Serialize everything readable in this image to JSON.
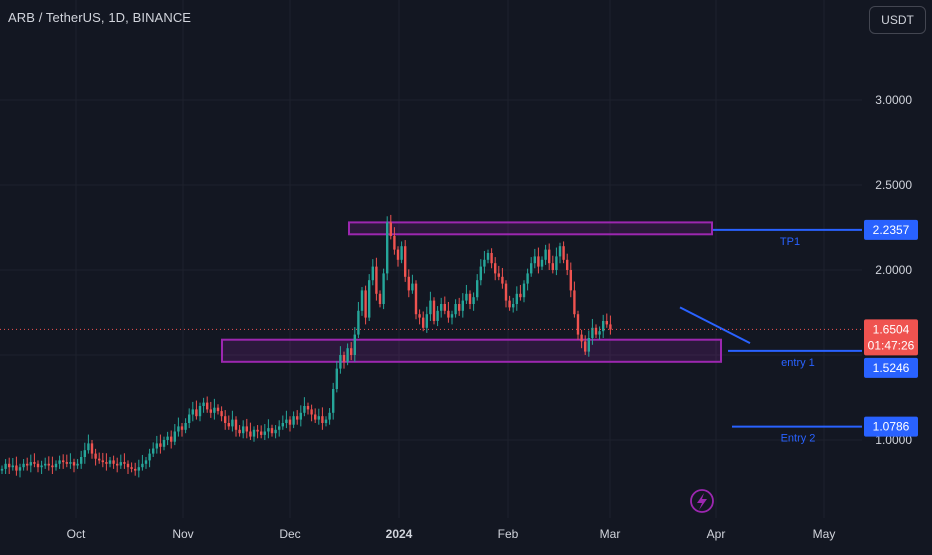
{
  "header": {
    "symbol_title": "ARB / TetherUS, 1D, BINANCE",
    "currency_label": "USDT"
  },
  "colors": {
    "background": "#131722",
    "up": "#26a69a",
    "down": "#ef5350",
    "zone": "#9c27b0",
    "line": "#2962ff",
    "text": "#d1d4dc"
  },
  "chart_data": {
    "type": "candlestick",
    "x_labels": [
      "Oct",
      "Nov",
      "Dec",
      "2024",
      "Feb",
      "Mar",
      "Apr",
      "May"
    ],
    "y_ticks": [
      "3.0000",
      "2.5000",
      "2.0000",
      "1.0000"
    ],
    "ylim": [
      0.8,
      3.4
    ],
    "grid": true,
    "series": [
      {
        "ohlc_summary": "daily ARB/USDT candles from mid-September 2023 to late March 2024",
        "start_date": "2023-09-15",
        "closes": [
          0.83,
          0.86,
          0.84,
          0.85,
          0.82,
          0.84,
          0.86,
          0.85,
          0.87,
          0.86,
          0.84,
          0.85,
          0.86,
          0.85,
          0.84,
          0.86,
          0.88,
          0.87,
          0.86,
          0.87,
          0.85,
          0.86,
          0.9,
          0.94,
          0.98,
          0.92,
          0.89,
          0.88,
          0.87,
          0.86,
          0.88,
          0.86,
          0.85,
          0.87,
          0.86,
          0.84,
          0.83,
          0.82,
          0.84,
          0.86,
          0.88,
          0.92,
          0.95,
          0.98,
          0.96,
          1.0,
          1.02,
          0.99,
          1.05,
          1.08,
          1.06,
          1.1,
          1.15,
          1.18,
          1.14,
          1.2,
          1.22,
          1.18,
          1.16,
          1.19,
          1.17,
          1.14,
          1.1,
          1.08,
          1.12,
          1.06,
          1.04,
          1.08,
          1.05,
          1.02,
          1.06,
          1.05,
          1.03,
          1.05,
          1.07,
          1.04,
          1.06,
          1.08,
          1.1,
          1.12,
          1.09,
          1.14,
          1.12,
          1.16,
          1.2,
          1.18,
          1.15,
          1.12,
          1.14,
          1.1,
          1.12,
          1.16,
          1.3,
          1.42,
          1.5,
          1.46,
          1.54,
          1.5,
          1.62,
          1.76,
          1.88,
          1.72,
          1.94,
          2.02,
          1.86,
          1.8,
          1.98,
          2.28,
          2.2,
          2.12,
          2.06,
          2.14,
          1.96,
          1.88,
          1.92,
          1.74,
          1.72,
          1.66,
          1.74,
          1.82,
          1.7,
          1.76,
          1.8,
          1.76,
          1.72,
          1.74,
          1.8,
          1.76,
          1.82,
          1.86,
          1.8,
          1.84,
          1.94,
          2.02,
          2.06,
          2.1,
          2.04,
          1.98,
          1.96,
          1.92,
          1.82,
          1.78,
          1.8,
          1.86,
          1.84,
          1.92,
          1.98,
          2.04,
          2.08,
          2.02,
          2.06,
          2.12,
          2.04,
          2.0,
          2.08,
          2.14,
          2.06,
          2.0,
          1.88,
          1.74,
          1.62,
          1.58,
          1.52,
          1.6,
          1.66,
          1.62,
          1.64,
          1.7,
          1.68,
          1.65
        ],
        "last_value": 1.6504
      }
    ],
    "annotations": [
      {
        "kind": "zone",
        "low": 2.21,
        "high": 2.28
      },
      {
        "kind": "zone",
        "low": 1.46,
        "high": 1.59
      },
      {
        "kind": "level",
        "label": "TP1",
        "value": 2.2357
      },
      {
        "kind": "level",
        "label": "entry 1",
        "value": 1.5246
      },
      {
        "kind": "level",
        "label": "Entry 2",
        "value": 1.0786
      },
      {
        "kind": "trendline",
        "from": 1.78,
        "to": 1.57
      }
    ],
    "price_labels": [
      {
        "id": "tp1",
        "text": "2.2357"
      },
      {
        "id": "last",
        "text": "1.6504"
      },
      {
        "id": "countdown",
        "text": "01:47:26"
      },
      {
        "id": "entry1",
        "text": "1.5246"
      },
      {
        "id": "entry2",
        "text": "1.0786"
      }
    ]
  }
}
